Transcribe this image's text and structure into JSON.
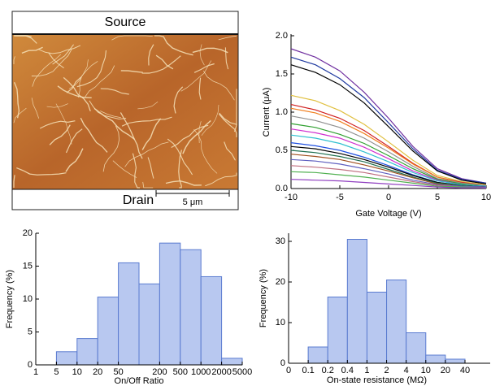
{
  "image": {
    "top_label": "Source",
    "bottom_label": "Drain",
    "scale_bar": "5 μm"
  },
  "chart_data": [
    {
      "type": "line",
      "xlabel": "Gate Voltage (V)",
      "ylabel": "Current (μA)",
      "x": [
        -10,
        -7.5,
        -5,
        -2.5,
        0,
        2.5,
        5,
        7.5,
        10
      ],
      "xlim": [
        -10,
        10
      ],
      "xticks": [
        -10,
        -5,
        0,
        5,
        10
      ],
      "ylim": [
        0,
        2
      ],
      "yticks": [
        {
          "value": 0,
          "label": "0.0"
        },
        0.5,
        {
          "value": 1,
          "label": "1.0"
        },
        1.5,
        {
          "value": 2,
          "label": "2.0"
        }
      ],
      "series": [
        {
          "color": "#7030a0",
          "values": [
            1.83,
            1.72,
            1.54,
            1.26,
            0.92,
            0.55,
            0.26,
            0.13,
            0.07
          ]
        },
        {
          "color": "#1f3aa0",
          "values": [
            1.72,
            1.62,
            1.44,
            1.19,
            0.86,
            0.52,
            0.24,
            0.12,
            0.07
          ]
        },
        {
          "color": "#000000",
          "values": [
            1.62,
            1.52,
            1.36,
            1.12,
            0.81,
            0.49,
            0.23,
            0.11,
            0.06
          ]
        },
        {
          "color": "#e0c040",
          "values": [
            1.22,
            1.15,
            1.02,
            0.84,
            0.61,
            0.37,
            0.17,
            0.09,
            0.05
          ]
        },
        {
          "color": "#d02020",
          "values": [
            1.1,
            1.03,
            0.92,
            0.76,
            0.55,
            0.33,
            0.15,
            0.08,
            0.04
          ]
        },
        {
          "color": "#f08020",
          "values": [
            1.05,
            0.99,
            0.88,
            0.72,
            0.53,
            0.32,
            0.15,
            0.07,
            0.04
          ]
        },
        {
          "color": "#909090",
          "values": [
            0.95,
            0.89,
            0.8,
            0.66,
            0.48,
            0.29,
            0.13,
            0.07,
            0.04
          ]
        },
        {
          "color": "#30a030",
          "values": [
            0.85,
            0.8,
            0.71,
            0.59,
            0.43,
            0.26,
            0.12,
            0.06,
            0.03
          ]
        },
        {
          "color": "#d030d0",
          "values": [
            0.78,
            0.73,
            0.66,
            0.54,
            0.39,
            0.23,
            0.11,
            0.05,
            0.03
          ]
        },
        {
          "color": "#30c0d0",
          "values": [
            0.7,
            0.66,
            0.59,
            0.48,
            0.35,
            0.21,
            0.1,
            0.05,
            0.03
          ]
        },
        {
          "color": "#2050e0",
          "values": [
            0.6,
            0.56,
            0.5,
            0.41,
            0.3,
            0.18,
            0.08,
            0.04,
            0.02
          ]
        },
        {
          "color": "#000000",
          "values": [
            0.55,
            0.52,
            0.46,
            0.38,
            0.28,
            0.17,
            0.08,
            0.04,
            0.02
          ]
        },
        {
          "color": "#207050",
          "values": [
            0.5,
            0.47,
            0.42,
            0.35,
            0.25,
            0.15,
            0.07,
            0.04,
            0.02
          ]
        },
        {
          "color": "#a05020",
          "values": [
            0.45,
            0.42,
            0.38,
            0.31,
            0.23,
            0.14,
            0.06,
            0.03,
            0.02
          ]
        },
        {
          "color": "#6060c0",
          "values": [
            0.38,
            0.36,
            0.32,
            0.26,
            0.19,
            0.11,
            0.05,
            0.03,
            0.02
          ]
        },
        {
          "color": "#c07080",
          "values": [
            0.3,
            0.28,
            0.25,
            0.21,
            0.15,
            0.09,
            0.04,
            0.02,
            0.01
          ]
        },
        {
          "color": "#50b050",
          "values": [
            0.22,
            0.21,
            0.18,
            0.15,
            0.11,
            0.07,
            0.03,
            0.02,
            0.01
          ]
        },
        {
          "color": "#9040c0",
          "values": [
            0.12,
            0.11,
            0.1,
            0.08,
            0.06,
            0.04,
            0.02,
            0.01,
            0.01
          ]
        }
      ]
    },
    {
      "type": "histogram",
      "xlabel": "On/Off Ratio",
      "ylabel": "Frequency (%)",
      "color": "#b8c8f0",
      "bins": [
        1,
        5,
        10,
        20,
        50,
        100,
        200,
        500,
        1000,
        2000,
        5000
      ],
      "values": [
        0,
        2,
        4,
        10.3,
        15.5,
        12.3,
        18.5,
        17.5,
        13.4,
        1
      ],
      "xticks": [
        1,
        5,
        10,
        20,
        50,
        200,
        500,
        1000,
        2000,
        5000
      ],
      "ylim": [
        0,
        20
      ],
      "yticks": [
        0,
        5,
        10,
        15,
        20
      ]
    },
    {
      "type": "histogram",
      "xlabel": "On-state resistance (MΩ)",
      "ylabel": "Frequency (%)",
      "color": "#b8c8f0",
      "bins": [
        0,
        0.1,
        0.2,
        0.4,
        1,
        2,
        4,
        10,
        20,
        40
      ],
      "values": [
        0,
        4,
        16.3,
        30.5,
        17.5,
        20.5,
        7.5,
        2,
        1
      ],
      "xticks": [
        0,
        0.1,
        0.2,
        0.4,
        1,
        2,
        4,
        10,
        20,
        40
      ],
      "ylim": [
        0,
        32
      ],
      "yticks": [
        0,
        10,
        20,
        30
      ]
    }
  ]
}
